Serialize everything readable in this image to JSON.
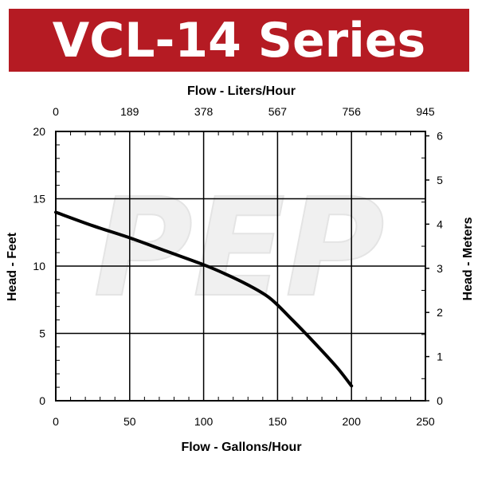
{
  "banner": {
    "title": "VCL-14 Series"
  },
  "watermark": {
    "text": "PEP"
  },
  "colors": {
    "banner": "#b51b23",
    "curve": "#000000",
    "grid": "#000000",
    "watermark": "#eeeeee"
  },
  "chart_data": {
    "type": "line",
    "title": "VCL-14 Series",
    "xlabel": "Flow - Gallons/Hour",
    "x2label": "Flow - Liters/Hour",
    "ylabel": "Head - Feet",
    "y2label": "Head - Meters",
    "xlim": [
      0,
      250
    ],
    "ylim": [
      0,
      20
    ],
    "x2lim": [
      0,
      945
    ],
    "y2lim": [
      0,
      6.1
    ],
    "x_ticks": [
      "0",
      "50",
      "100",
      "150",
      "200",
      "250"
    ],
    "x2_ticks": [
      "0",
      "189",
      "378",
      "567",
      "756",
      "945"
    ],
    "y_ticks": [
      "0",
      "5",
      "10",
      "15",
      "20"
    ],
    "y2_ticks": [
      "0",
      "1",
      "2",
      "3",
      "4",
      "5",
      "6"
    ],
    "grid": true,
    "series": [
      {
        "x": [
          0,
          25,
          50,
          75,
          100,
          115,
          130,
          145,
          160,
          175,
          190,
          200
        ],
        "y": [
          14.0,
          13.0,
          12.1,
          11.1,
          10.1,
          9.4,
          8.6,
          7.6,
          6.0,
          4.3,
          2.5,
          1.1
        ]
      }
    ]
  }
}
